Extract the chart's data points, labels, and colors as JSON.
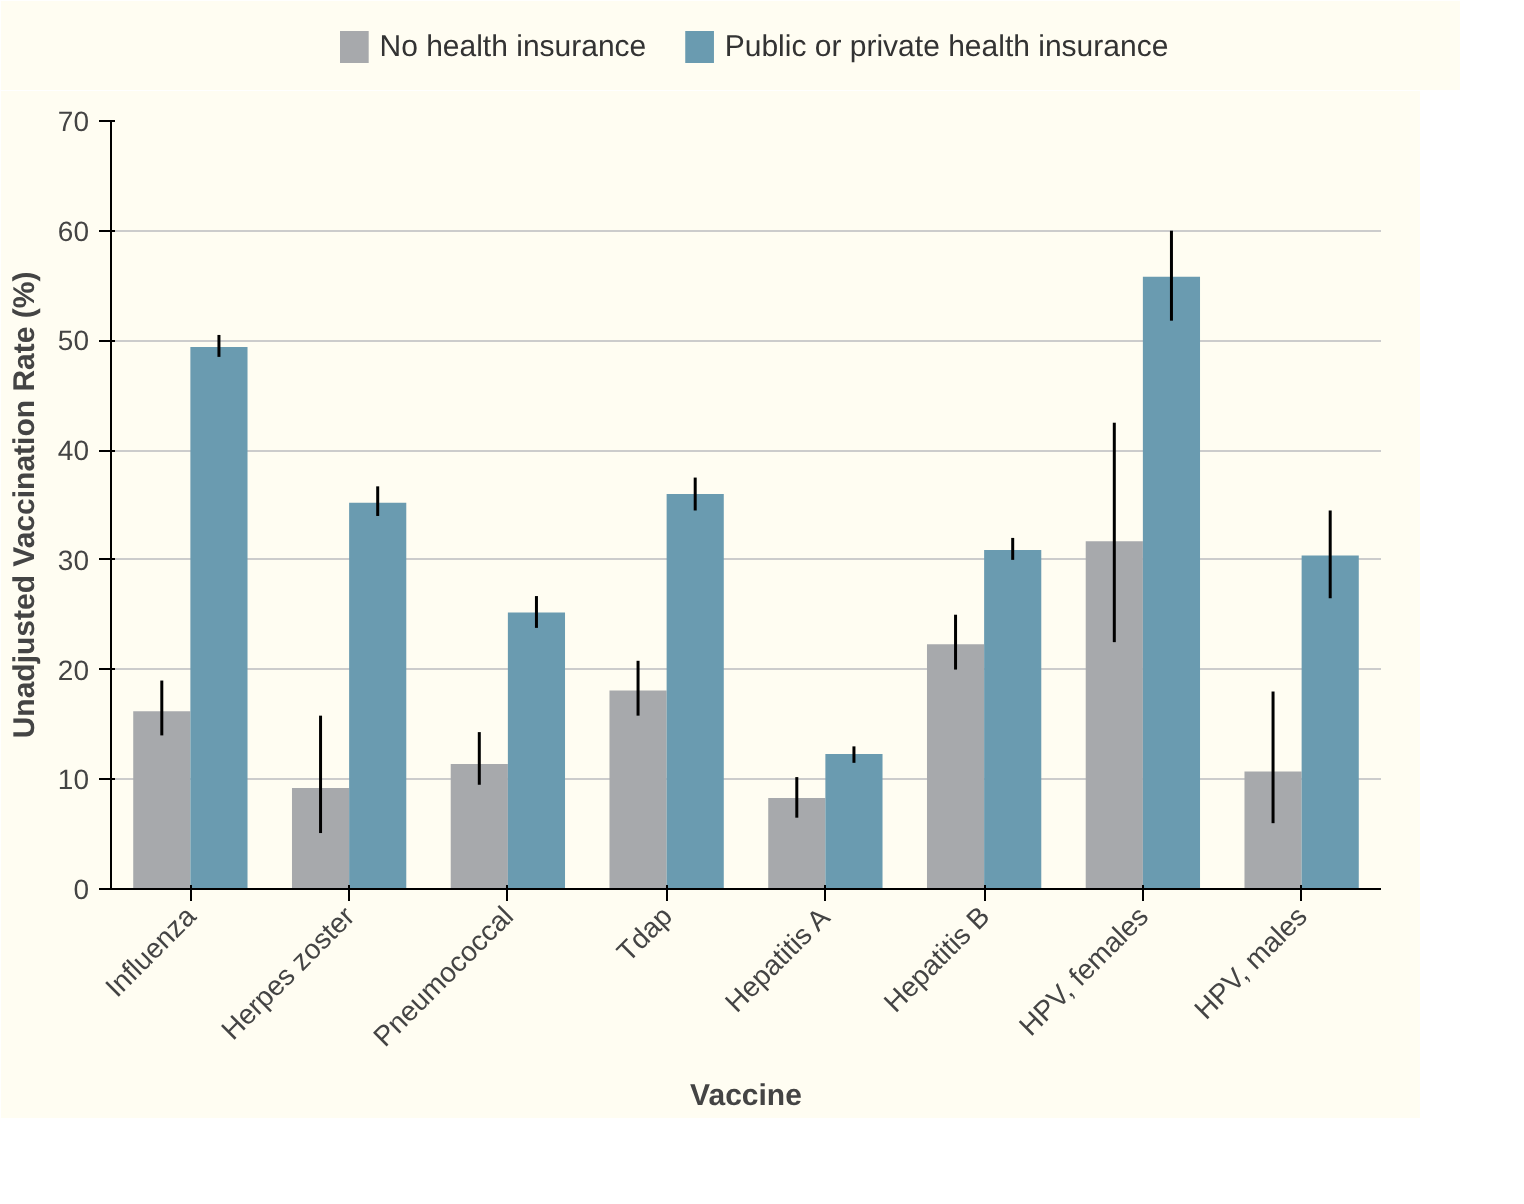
{
  "chart_data": {
    "type": "bar",
    "xlabel": "Vaccine",
    "ylabel": "Unadjusted Vaccination Rate (%)",
    "categories": [
      "Influenza",
      "Herpes zoster",
      "Pneumococcal",
      "Tdap",
      "Hepatitis A",
      "Hepatitis B",
      "HPV, females",
      "HPV, males"
    ],
    "series": [
      {
        "name": "No health insurance",
        "color": "#a7a9ac",
        "values": [
          16.2,
          9.2,
          11.4,
          18.1,
          8.3,
          22.3,
          31.7,
          10.7
        ],
        "errors": [
          [
            14,
            19
          ],
          [
            5.1,
            15.8
          ],
          [
            9.5,
            14.3
          ],
          [
            15.8,
            20.8
          ],
          [
            6.5,
            10.2
          ],
          [
            20,
            25
          ],
          [
            22.5,
            42.5
          ],
          [
            6,
            18
          ]
        ]
      },
      {
        "name": "Public or private health insurance",
        "color": "#6a9bb0",
        "values": [
          49.4,
          35.2,
          25.2,
          36,
          12.3,
          30.9,
          55.8,
          30.4
        ],
        "errors": [
          [
            48.5,
            50.5
          ],
          [
            34,
            36.7
          ],
          [
            23.8,
            26.7
          ],
          [
            34.5,
            37.5
          ],
          [
            11.5,
            13
          ],
          [
            30,
            32
          ],
          [
            51.8,
            60
          ],
          [
            26.5,
            34.5
          ]
        ]
      }
    ],
    "ylim": [
      0,
      70
    ],
    "yticks": [
      0,
      10,
      20,
      30,
      40,
      50,
      60,
      70
    ],
    "grid": "y",
    "legend": "top"
  }
}
